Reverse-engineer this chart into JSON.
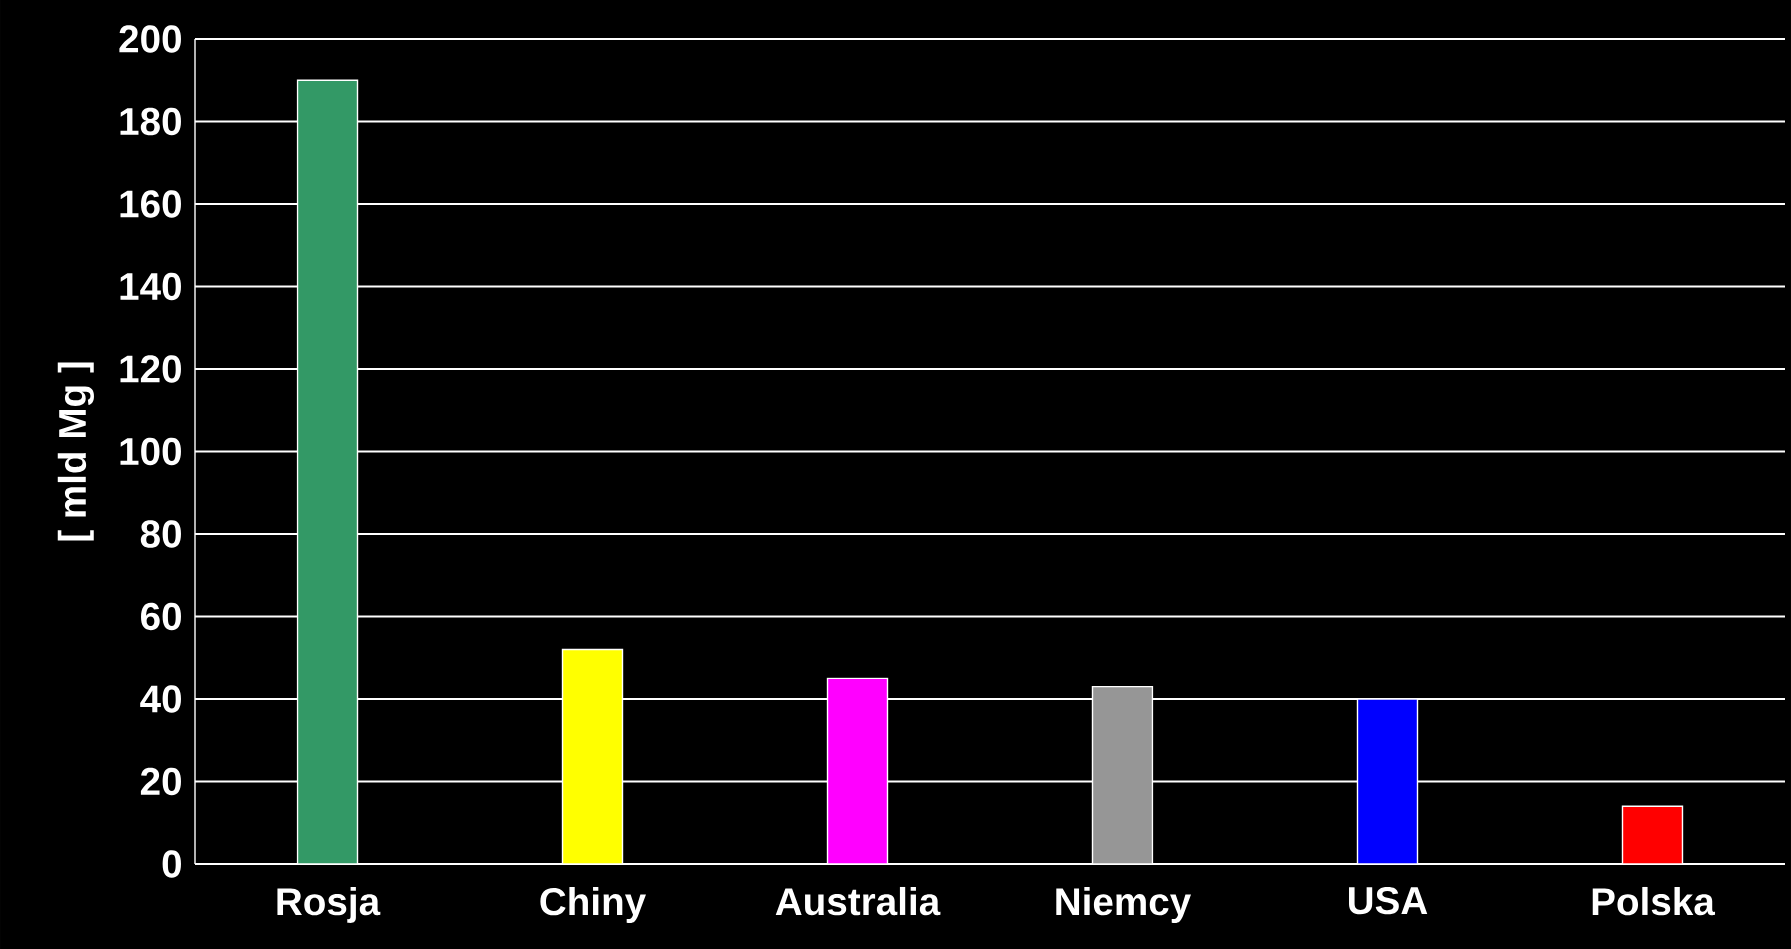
{
  "chart_data": {
    "type": "bar",
    "ylabel": "[ mld Mg ]",
    "categories": [
      "Rosja",
      "Chiny",
      "Australia",
      "Niemcy",
      "USA",
      "Polska"
    ],
    "values": [
      190,
      52,
      45,
      43,
      40,
      14
    ],
    "colors": [
      "#339966",
      "#ffff00",
      "#ff00ff",
      "#969696",
      "#0000ff",
      "#ff0000"
    ],
    "ylim": [
      0,
      200
    ],
    "yticks": [
      0,
      20,
      40,
      60,
      80,
      100,
      120,
      140,
      160,
      180,
      200
    ],
    "grid": "y"
  }
}
